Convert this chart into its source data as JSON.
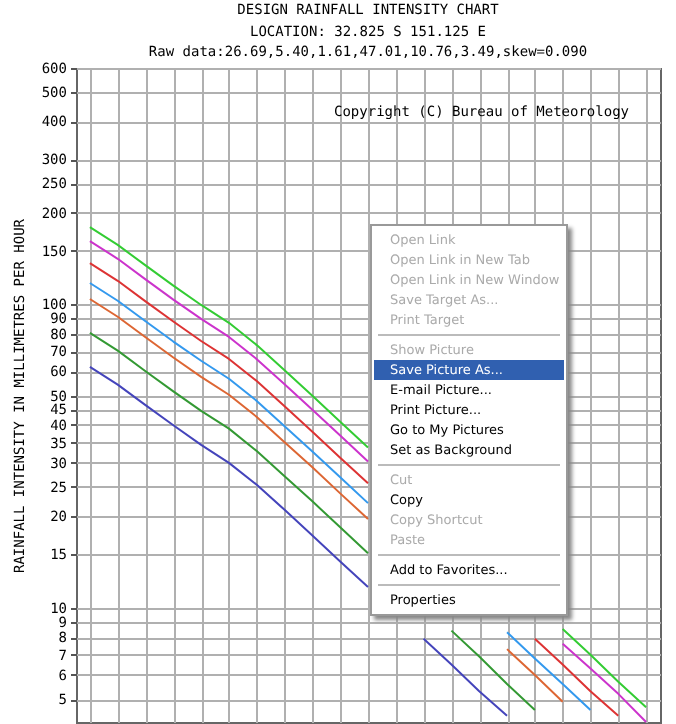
{
  "chart_data": {
    "type": "line",
    "title": "DESIGN RAINFALL INTENSITY CHART",
    "subtitle": "LOCATION: 32.825 S 151.125 E",
    "ylabel": "RAINFALL INTENSITY IN MILLIMETRES PER HOUR",
    "annotations": [
      "Raw data:26.69,5.40,1.61,47.01,10.76,3.49,skew=0.090",
      "Copyright (C) Bureau of Meteorology",
      "Open Link",
      "Open Link in New Tab",
      "Open Link in New Window",
      "Save Target As...",
      "Print Target",
      "Show Picture",
      "Save Picture As...",
      "E-mail Picture...",
      "Print Picture...",
      "Go to My Pictures",
      "Set as Background",
      "Cut",
      "Copy",
      "Copy Shortcut",
      "Paste",
      "Add to Favorites...",
      "Properties"
    ],
    "categories": [
      null,
      null,
      null,
      null,
      null,
      null,
      null,
      null,
      null,
      null,
      null,
      null,
      null,
      null,
      null,
      null,
      null,
      null,
      null,
      null,
      null
    ],
    "series": [
      {
        "color": "#33cc33",
        "values": [
          179.4,
          156.8,
          134.2,
          115.1,
          99.4,
          86.8,
          73.3,
          60.6,
          49.9,
          41.0,
          33.7,
          null,
          null,
          null,
          null,
          null,
          null,
          8.5,
          7.0,
          5.7,
          4.7
        ]
      },
      {
        "color": "#cc33cc",
        "values": [
          161.4,
          141.1,
          120.7,
          103.5,
          89.4,
          78.0,
          65.9,
          54.5,
          44.9,
          36.9,
          30.3,
          null,
          null,
          null,
          null,
          null,
          null,
          7.6,
          6.3,
          5.2,
          4.2
        ]
      },
      {
        "color": "#dd3333",
        "values": [
          136.6,
          119.4,
          102.1,
          87.7,
          75.6,
          66.0,
          55.8,
          46.1,
          38.0,
          31.2,
          25.7,
          null,
          null,
          null,
          null,
          null,
          7.9,
          6.5,
          5.3,
          4.4,
          null
        ]
      },
      {
        "color": "#3399ee",
        "values": [
          117.4,
          102.6,
          87.8,
          75.3,
          65.1,
          56.8,
          48.0,
          39.6,
          32.7,
          26.9,
          22.1,
          null,
          null,
          null,
          null,
          8.3,
          6.8,
          5.6,
          4.6,
          null,
          null
        ]
      },
      {
        "color": "#dd6633",
        "values": [
          104.0,
          90.9,
          77.8,
          66.7,
          57.6,
          50.3,
          42.5,
          35.1,
          29.0,
          23.8,
          19.6,
          null,
          null,
          null,
          null,
          7.3,
          6.0,
          4.9,
          null,
          null,
          null
        ]
      },
      {
        "color": "#339933",
        "values": [
          80.4,
          70.3,
          60.1,
          51.6,
          44.5,
          38.9,
          32.8,
          27.1,
          22.4,
          18.4,
          15.1,
          null,
          null,
          8.4,
          6.9,
          5.6,
          4.6,
          null,
          null,
          null,
          null
        ]
      },
      {
        "color": "#4444bb",
        "values": [
          62.1,
          54.3,
          46.5,
          39.9,
          34.4,
          30.0,
          25.4,
          21.0,
          17.3,
          14.2,
          11.7,
          null,
          7.9,
          6.5,
          5.3,
          4.4,
          null,
          null,
          null,
          null,
          null
        ]
      }
    ],
    "ylim": [
      4.2,
      600
    ],
    "yticks": [
      5,
      6,
      7,
      8,
      9,
      10,
      15,
      20,
      25,
      30,
      35,
      40,
      45,
      50,
      60,
      70,
      80,
      90,
      100,
      150,
      200,
      250,
      300,
      400,
      500,
      600
    ],
    "log": "y",
    "grid": true,
    "tick_labels": "y"
  }
}
